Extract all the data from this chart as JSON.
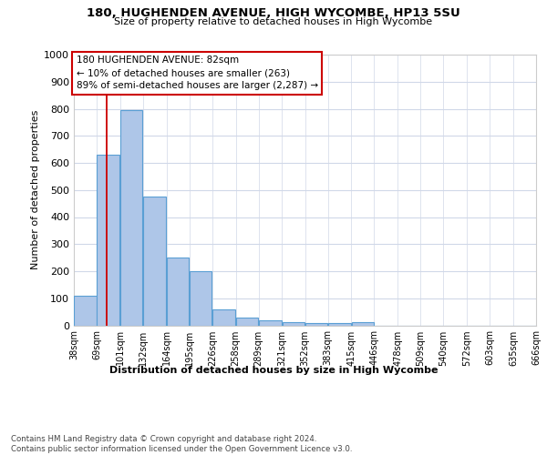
{
  "title1": "180, HUGHENDEN AVENUE, HIGH WYCOMBE, HP13 5SU",
  "title2": "Size of property relative to detached houses in High Wycombe",
  "xlabel": "Distribution of detached houses by size in High Wycombe",
  "ylabel": "Number of detached properties",
  "footnote": "Contains HM Land Registry data © Crown copyright and database right 2024.\nContains public sector information licensed under the Open Government Licence v3.0.",
  "bins": [
    38,
    69,
    101,
    132,
    164,
    195,
    226,
    258,
    289,
    321,
    352,
    383,
    415,
    446,
    478,
    509,
    540,
    572,
    603,
    635,
    666
  ],
  "bar_labels": [
    "38sqm",
    "69sqm",
    "101sqm",
    "132sqm",
    "164sqm",
    "195sqm",
    "226sqm",
    "258sqm",
    "289sqm",
    "321sqm",
    "352sqm",
    "383sqm",
    "415sqm",
    "446sqm",
    "478sqm",
    "509sqm",
    "540sqm",
    "572sqm",
    "603sqm",
    "635sqm",
    "666sqm"
  ],
  "values": [
    110,
    630,
    795,
    475,
    250,
    200,
    60,
    28,
    20,
    12,
    10,
    10,
    12,
    0,
    0,
    0,
    0,
    0,
    0,
    0
  ],
  "bar_color": "#aec6e8",
  "bar_edge_color": "#5a9fd4",
  "vline_x": 82,
  "vline_color": "#cc0000",
  "annotation_line1": "180 HUGHENDEN AVENUE: 82sqm",
  "annotation_line2": "← 10% of detached houses are smaller (263)",
  "annotation_line3": "89% of semi-detached houses are larger (2,287) →",
  "ylim": [
    0,
    1000
  ],
  "yticks": [
    0,
    100,
    200,
    300,
    400,
    500,
    600,
    700,
    800,
    900,
    1000
  ],
  "background_color": "#ffffff",
  "grid_color": "#d0d8e8"
}
